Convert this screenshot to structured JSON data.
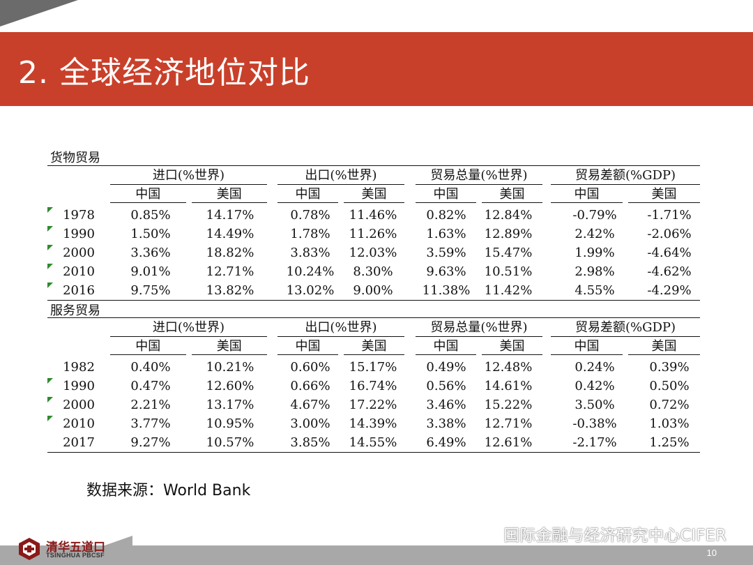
{
  "slide": {
    "title": "2.  全球经济地位对比",
    "page_number": "10",
    "source_prefix": "数据来源：",
    "source_name": "World Bank",
    "wechat_text": "国际金融与经济研究中心CIFER",
    "logo_cn": "清华五道口",
    "logo_en": "TSINGHUA PBCSF"
  },
  "colors": {
    "title_bar": "#c9402a",
    "footer_bar": "#a8a8a8",
    "corner": "#6b6b6b",
    "row_marker": "#2e8b2e"
  },
  "goods": {
    "label": "货物贸易",
    "groups": [
      "进口(%世界)",
      "出口(%世界)",
      "贸易总量(%世界)",
      "贸易差额(%GDP)"
    ],
    "subheaders": [
      "中国",
      "美国",
      "中国",
      "美国",
      "中国",
      "美国",
      "中国",
      "美国"
    ],
    "rows": [
      {
        "year": "1978",
        "marked": true,
        "values": [
          "0.85%",
          "14.17%",
          "0.78%",
          "11.46%",
          "0.82%",
          "12.84%",
          "-0.79%",
          "-1.71%"
        ]
      },
      {
        "year": "1990",
        "marked": true,
        "values": [
          "1.50%",
          "14.49%",
          "1.78%",
          "11.26%",
          "1.63%",
          "12.89%",
          "2.42%",
          "-2.06%"
        ]
      },
      {
        "year": "2000",
        "marked": true,
        "values": [
          "3.36%",
          "18.82%",
          "3.83%",
          "12.03%",
          "3.59%",
          "15.47%",
          "1.99%",
          "-4.64%"
        ]
      },
      {
        "year": "2010",
        "marked": true,
        "values": [
          "9.01%",
          "12.71%",
          "10.24%",
          "8.30%",
          "9.63%",
          "10.51%",
          "2.98%",
          "-4.62%"
        ]
      },
      {
        "year": "2016",
        "marked": true,
        "values": [
          "9.75%",
          "13.82%",
          "13.02%",
          "9.00%",
          "11.38%",
          "11.42%",
          "4.55%",
          "-4.29%"
        ]
      }
    ]
  },
  "services": {
    "label": "服务贸易",
    "groups": [
      "进口(%世界)",
      "出口(%世界)",
      "贸易总量(%世界)",
      "贸易差额(%GDP)"
    ],
    "subheaders": [
      "中国",
      "美国",
      "中国",
      "美国",
      "中国",
      "美国",
      "中国",
      "美国"
    ],
    "rows": [
      {
        "year": "1982",
        "marked": false,
        "values": [
          "0.40%",
          "10.21%",
          "0.60%",
          "15.17%",
          "0.49%",
          "12.48%",
          "0.24%",
          "0.39%"
        ]
      },
      {
        "year": "1990",
        "marked": true,
        "values": [
          "0.47%",
          "12.60%",
          "0.66%",
          "16.74%",
          "0.56%",
          "14.61%",
          "0.42%",
          "0.50%"
        ]
      },
      {
        "year": "2000",
        "marked": true,
        "values": [
          "2.21%",
          "13.17%",
          "4.67%",
          "17.22%",
          "3.46%",
          "15.22%",
          "3.50%",
          "0.72%"
        ]
      },
      {
        "year": "2010",
        "marked": true,
        "values": [
          "3.77%",
          "10.95%",
          "3.00%",
          "14.39%",
          "3.38%",
          "12.71%",
          "-0.38%",
          "1.03%"
        ]
      },
      {
        "year": "2017",
        "marked": false,
        "values": [
          "9.27%",
          "10.57%",
          "3.85%",
          "14.55%",
          "6.49%",
          "12.61%",
          "-2.17%",
          "1.25%"
        ]
      }
    ]
  }
}
